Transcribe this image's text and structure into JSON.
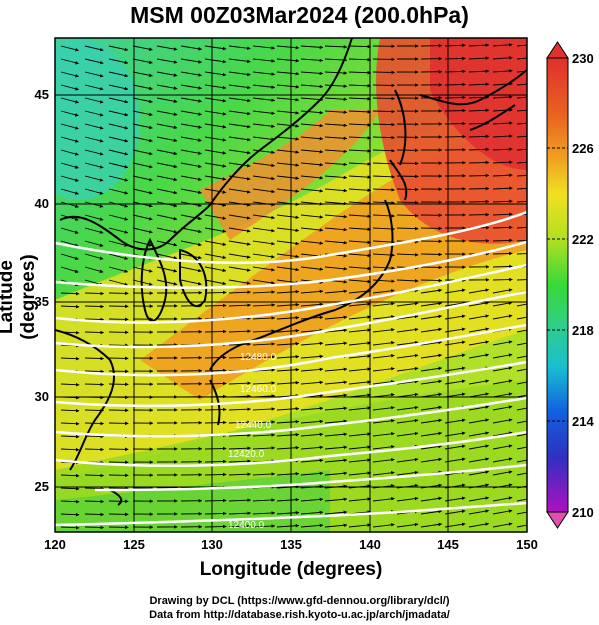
{
  "title": "MSM 00Z03Mar2024 (200.0hPa)",
  "map": {
    "xlabel": "Longitude (degrees)",
    "ylabel": "Latitude  (degrees)",
    "x_ticks": [
      "120",
      "125",
      "130",
      "135",
      "140",
      "145",
      "150"
    ],
    "y_ticks": [
      "25",
      "30",
      "35",
      "40",
      "45"
    ],
    "lon_range": [
      120,
      150
    ],
    "lat_range": [
      22.4,
      47.6
    ],
    "field": "temperature shading",
    "vectors": "wind arrows"
  },
  "colorbar": {
    "labels": [
      "230",
      "226",
      "222",
      "218",
      "214",
      "210"
    ],
    "range": [
      210,
      230
    ],
    "colors": [
      "#e05090",
      "#b010c0",
      "#3030c0",
      "#1060e0",
      "#18c0d0",
      "#30d080",
      "#38d838",
      "#b0e020",
      "#f0e020",
      "#f0a020",
      "#e86020",
      "#e03030"
    ]
  },
  "contours": {
    "labels": [
      "12480.0",
      "12460.0",
      "12440.0",
      "12420.0",
      "12400.0"
    ]
  },
  "credits": {
    "line1": "Drawing by DCL (https://www.gfd-dennou.org/library/dcl/)",
    "line2": "Data from http://database.rish.kyoto-u.ac.jp/arch/jmadata/"
  }
}
